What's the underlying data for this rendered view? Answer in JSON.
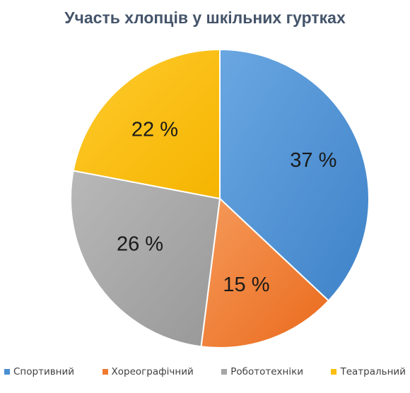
{
  "chart_data": {
    "type": "pie",
    "title": "Участь хлопців у шкільних гуртках",
    "slices": [
      {
        "name": "Спортивний",
        "value": 37,
        "label": "37 %",
        "color": "#4a8fd3"
      },
      {
        "name": "Хореографічний",
        "value": 15,
        "label": "15 %",
        "color": "#ef7a30"
      },
      {
        "name": "Робототехніки",
        "value": 26,
        "label": "26 %",
        "color": "#a6a6a6"
      },
      {
        "name": "Театральний",
        "value": 22,
        "label": "22 %",
        "color": "#fcbf10"
      }
    ],
    "legend_position": "bottom",
    "start_angle_deg": 0,
    "direction": "clockwise"
  }
}
